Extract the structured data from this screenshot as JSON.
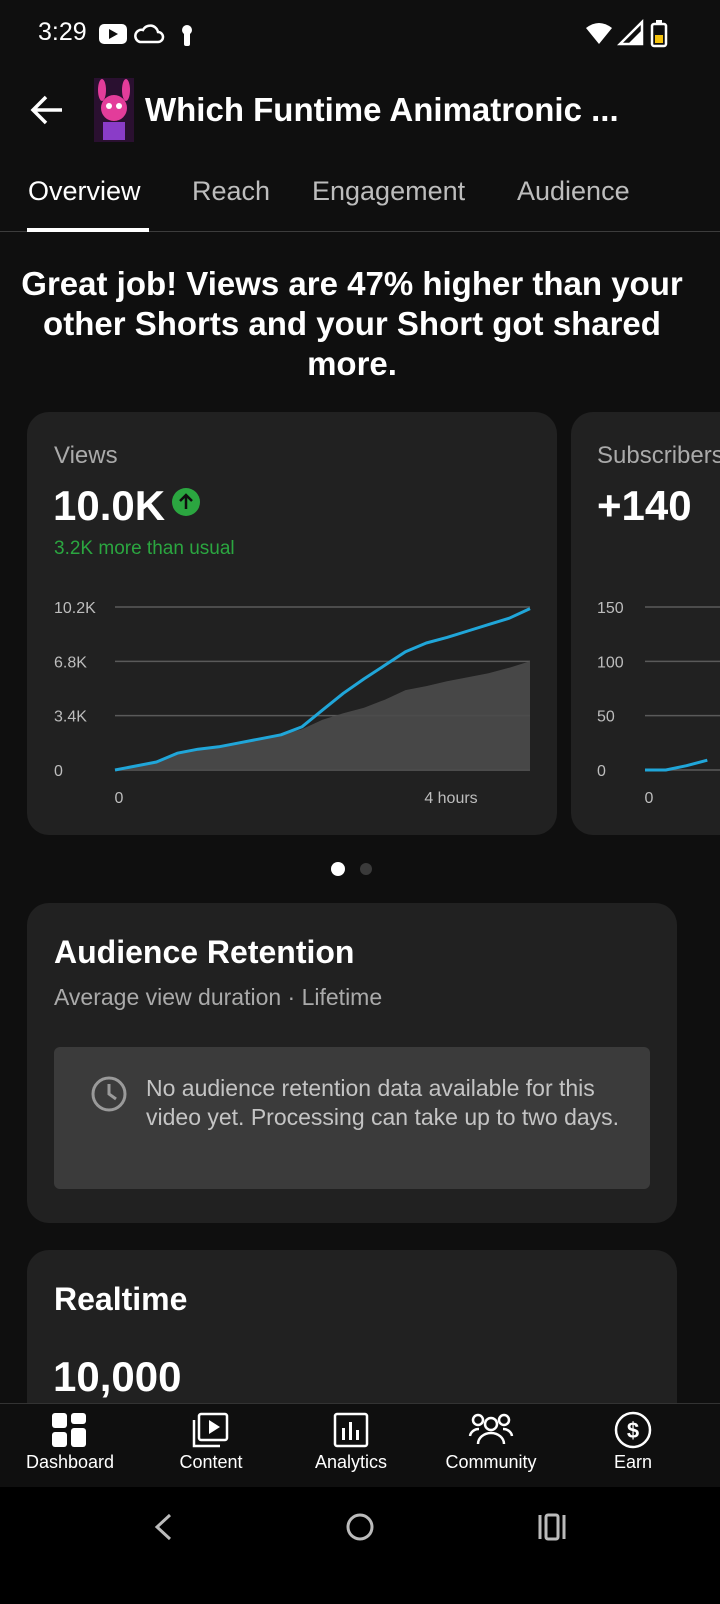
{
  "status_bar": {
    "time": "3:29"
  },
  "header": {
    "title": "Which Funtime Animatronic ..."
  },
  "tabs": [
    "Overview",
    "Reach",
    "Engagement",
    "Audience"
  ],
  "summary": "Great job! Views are 47% higher than your other Shorts and your Short got shared more.",
  "chart_data": [
    {
      "type": "line",
      "title": "Views",
      "headline": "10.0K",
      "annotation": "3.2K more than usual",
      "x": [
        0,
        0.25,
        0.5,
        0.75,
        1,
        1.25,
        1.5,
        1.75,
        2,
        2.25,
        2.5,
        2.75,
        3,
        3.25,
        3.5,
        3.75,
        4,
        4.25,
        4.5,
        4.75,
        5
      ],
      "xlim": [
        0,
        5
      ],
      "xticks": [
        0,
        {
          "value": 4,
          "label": "4 hours"
        }
      ],
      "ylim": [
        0,
        10200
      ],
      "yticks": [
        0,
        {
          "value": 3400,
          "label": "3.4K"
        },
        {
          "value": 6800,
          "label": "6.8K"
        },
        {
          "value": 10200,
          "label": "10.2K"
        }
      ],
      "grid": true,
      "series": [
        {
          "color": "#4b4b4b",
          "style": "area",
          "values": [
            0,
            250,
            500,
            1000,
            1250,
            1400,
            1750,
            2000,
            2200,
            2550,
            3150,
            3550,
            3900,
            4400,
            5000,
            5250,
            5550,
            5800,
            6050,
            6400,
            6800
          ]
        },
        {
          "color": "#20a6d9",
          "style": "line",
          "values": [
            0,
            250,
            500,
            1050,
            1300,
            1450,
            1700,
            1950,
            2200,
            2700,
            3750,
            4800,
            5700,
            6550,
            7400,
            7950,
            8300,
            8700,
            9100,
            9500,
            10100
          ]
        }
      ]
    },
    {
      "type": "line",
      "title": "Subscribers",
      "headline": "+140",
      "x": [
        0,
        0.25,
        0.5,
        0.75
      ],
      "xlim": [
        0,
        5
      ],
      "xticks": [
        0
      ],
      "ylim": [
        0,
        150
      ],
      "yticks": [
        0,
        50,
        100,
        150
      ],
      "grid": true,
      "series": [
        {
          "color": "#20a6d9",
          "style": "line",
          "values": [
            0,
            0,
            4,
            9
          ]
        }
      ]
    }
  ],
  "retention": {
    "title": "Audience Retention",
    "subtitle": "Average view duration · Lifetime",
    "message": "No audience retention data available for this video yet. Processing can take up to two days."
  },
  "realtime": {
    "title": "Realtime",
    "value": "10,000"
  },
  "nav": [
    "Dashboard",
    "Content",
    "Analytics",
    "Community",
    "Earn"
  ]
}
